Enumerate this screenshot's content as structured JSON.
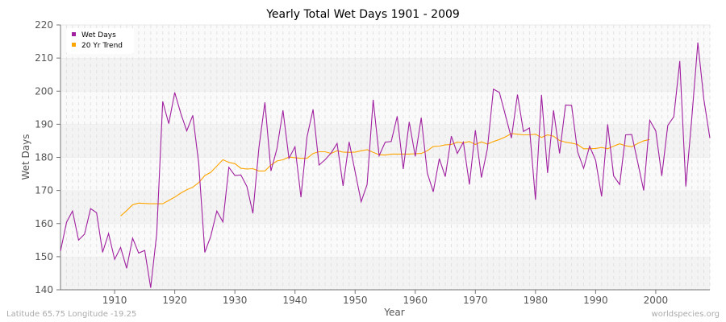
{
  "chart_data": {
    "type": "line",
    "title": "Yearly Total Wet Days 1901 - 2009",
    "xlabel": "Year",
    "ylabel": "Wet Days",
    "xlim": [
      1901,
      2009
    ],
    "ylim": [
      140,
      220
    ],
    "xticks": [
      1910,
      1920,
      1930,
      1940,
      1950,
      1960,
      1970,
      1980,
      1990,
      2000
    ],
    "yticks": [
      140,
      150,
      160,
      170,
      180,
      190,
      200,
      210,
      220
    ],
    "grid": true,
    "legend_position": "top-left",
    "series": [
      {
        "name": "Wet Days",
        "color": "#a020a0",
        "x_start": 1901,
        "values": [
          151.7,
          160.4,
          163.8,
          155.0,
          156.8,
          164.5,
          163.3,
          151.3,
          157.0,
          149.2,
          152.8,
          146.5,
          155.6,
          151.1,
          151.9,
          140.6,
          157.0,
          196.9,
          190.2,
          199.6,
          193.3,
          188.0,
          192.7,
          178.1,
          151.3,
          156.2,
          163.8,
          160.5,
          177.0,
          174.5,
          174.7,
          171.2,
          163.1,
          183.0,
          196.6,
          175.9,
          182.6,
          194.2,
          179.7,
          183.2,
          168.0,
          186.2,
          194.5,
          177.7,
          179.3,
          181.3,
          184.2,
          171.4,
          184.7,
          175.7,
          166.6,
          171.8,
          197.4,
          180.5,
          184.6,
          184.8,
          192.4,
          176.5,
          190.7,
          180.3,
          192.0,
          175.3,
          169.6,
          179.6,
          174.2,
          186.4,
          181.2,
          184.6,
          171.8,
          188.2,
          173.9,
          182.6,
          200.6,
          199.6,
          192.7,
          185.8,
          199.0,
          187.8,
          188.9,
          167.2,
          198.9,
          175.3,
          194.2,
          181.2,
          195.8,
          195.7,
          181.7,
          176.7,
          183.4,
          179.1,
          168.2,
          190.0,
          174.4,
          171.8,
          186.8,
          186.9,
          178.5,
          170.0,
          191.2,
          188.0,
          174.4,
          189.6,
          192.3,
          209.1,
          171.2,
          191.9,
          214.7,
          197.6,
          185.8
        ]
      },
      {
        "name": "20 Yr Trend",
        "color": "#ffa500",
        "x_start": 1911,
        "values": [
          162.3,
          163.9,
          165.7,
          166.2,
          166.1,
          166.0,
          166.0,
          166.0,
          167.0,
          168.0,
          169.2,
          170.2,
          171.0,
          172.4,
          174.5,
          175.5,
          177.4,
          179.3,
          178.5,
          178.1,
          176.7,
          176.5,
          176.6,
          175.9,
          175.9,
          177.7,
          178.9,
          179.3,
          180.1,
          179.9,
          179.7,
          179.7,
          181.2,
          181.7,
          181.7,
          181.2,
          182.0,
          181.6,
          181.5,
          181.6,
          182.0,
          182.3,
          181.5,
          180.8,
          180.7,
          181.0,
          181.0,
          181.0,
          181.0,
          181.1,
          181.2,
          182.0,
          183.3,
          183.4,
          183.8,
          183.9,
          184.6,
          184.4,
          184.8,
          183.9,
          184.7,
          184.0,
          184.8,
          185.4,
          186.2,
          187.2,
          187.0,
          186.8,
          186.8,
          187.0,
          186.0,
          186.8,
          186.4,
          185.1,
          184.6,
          184.3,
          183.9,
          182.6,
          182.6,
          182.7,
          183.0,
          182.6,
          183.4,
          184.1,
          183.5,
          183.2,
          184.2,
          185.0,
          185.4
        ]
      }
    ]
  },
  "footer": {
    "location": "Latitude 65.75 Longitude -19.25",
    "source": "worldspecies.org"
  }
}
